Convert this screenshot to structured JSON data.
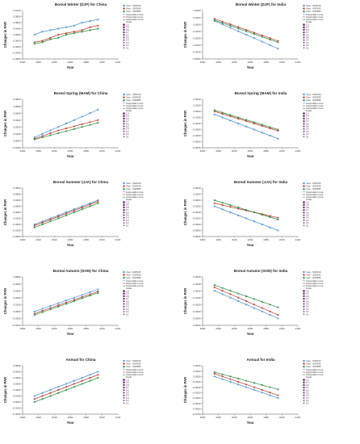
{
  "palette": {
    "ssp126": "#4a90d9",
    "ssp245": "#c0392b",
    "ssp585": "#2e8b3c",
    "size_legend": "#6a1b6a",
    "axis": "#555555"
  },
  "common": {
    "xlabel": "Year",
    "ylabel": "Changes in PAR",
    "legend_series": [
      "Year - SSP126",
      "Year - SSP245",
      "Year - SSP585"
    ],
    "legend_lines": [
      "Interpolation Line",
      "Interpolation Line",
      "Interpolation Line"
    ],
    "size_legend_title": "Scale",
    "size_legend_levels": [
      "1.0",
      "0.9",
      "0.8",
      "0.7",
      "0.6",
      "0.5",
      "0.4",
      "0.3",
      "0.2",
      "0.1"
    ],
    "x_ticks": [
      2000,
      2020,
      2040,
      2060,
      2080,
      2100,
      2120
    ]
  },
  "chart_data": [
    {
      "type": "line",
      "title": "Boreal Winter (DJF) for China",
      "xlabel": "Year",
      "ylabel": "Changes in PAR",
      "xlim": [
        2000,
        2120
      ],
      "ylim": [
        -0.06,
        0.1
      ],
      "y_ticks": [
        "-0.0600",
        "-0.0400",
        "-0.0200",
        "0.0000",
        "0.0200",
        "0.0400",
        "0.0600",
        "0.0800",
        "0.1000"
      ],
      "x": [
        2015,
        2025,
        2035,
        2045,
        2055,
        2065,
        2075,
        2085,
        2095
      ],
      "series": [
        {
          "name": "Year - SSP126",
          "values": [
            0.02,
            0.03,
            0.035,
            0.04,
            0.045,
            0.05,
            0.06,
            0.065,
            0.07
          ]
        },
        {
          "name": "Year - SSP245",
          "values": [
            -0.005,
            0.0,
            0.01,
            0.02,
            0.025,
            0.03,
            0.035,
            0.045,
            0.05
          ]
        },
        {
          "name": "Year - SSP585",
          "values": [
            -0.01,
            -0.005,
            0.005,
            0.01,
            0.02,
            0.025,
            0.03,
            0.035,
            0.04
          ]
        }
      ]
    },
    {
      "type": "line",
      "title": "Boreal Winter (DJF) for India",
      "xlabel": "Year",
      "ylabel": "Changes in PAR",
      "xlim": [
        2000,
        2120
      ],
      "ylim": [
        -0.05,
        0.02
      ],
      "y_ticks": [
        "-0.0500",
        "-0.0400",
        "-0.0300",
        "-0.0200",
        "-0.0100",
        "0.0000",
        "0.0100",
        "0.0200"
      ],
      "x": [
        2015,
        2025,
        2035,
        2045,
        2055,
        2065,
        2075,
        2085,
        2095
      ],
      "series": [
        {
          "name": "Year - SSP126",
          "values": [
            0.005,
            0.0,
            -0.005,
            -0.01,
            -0.015,
            -0.02,
            -0.025,
            -0.03,
            -0.035
          ]
        },
        {
          "name": "Year - SSP245",
          "values": [
            0.008,
            0.004,
            0.0,
            -0.004,
            -0.008,
            -0.012,
            -0.016,
            -0.02,
            -0.024
          ]
        },
        {
          "name": "Year - SSP585",
          "values": [
            0.006,
            0.002,
            -0.002,
            -0.006,
            -0.01,
            -0.014,
            -0.018,
            -0.022,
            -0.026
          ]
        }
      ]
    },
    {
      "type": "line",
      "title": "Boreal Spring (MAM) for China",
      "xlabel": "Year",
      "ylabel": "Changes in PAR",
      "xlim": [
        2000,
        2120
      ],
      "ylim": [
        -0.01,
        0.06
      ],
      "y_ticks": [
        "-0.0100",
        "0.0000",
        "0.0100",
        "0.0200",
        "0.0300",
        "0.0400",
        "0.0500",
        "0.0600"
      ],
      "x": [
        2015,
        2025,
        2035,
        2045,
        2055,
        2065,
        2075,
        2085,
        2095
      ],
      "series": [
        {
          "name": "Year - SSP126",
          "values": [
            0.005,
            0.01,
            0.015,
            0.02,
            0.025,
            0.03,
            0.035,
            0.04,
            0.045
          ]
        },
        {
          "name": "Year - SSP245",
          "values": [
            0.003,
            0.007,
            0.011,
            0.015,
            0.018,
            0.021,
            0.024,
            0.027,
            0.03
          ]
        },
        {
          "name": "Year - SSP585",
          "values": [
            0.002,
            0.005,
            0.008,
            0.011,
            0.014,
            0.017,
            0.02,
            0.023,
            0.026
          ]
        }
      ]
    },
    {
      "type": "line",
      "title": "Boreal Spring (MAM) for India",
      "xlabel": "Year",
      "ylabel": "Changes in PAR",
      "xlim": [
        2000,
        2120
      ],
      "ylim": [
        -0.06,
        0.02
      ],
      "y_ticks": [
        "-0.0600",
        "-0.0500",
        "-0.0400",
        "-0.0300",
        "-0.0200",
        "-0.0100",
        "0.0000",
        "0.0100",
        "0.0200"
      ],
      "x": [
        2015,
        2025,
        2035,
        2045,
        2055,
        2065,
        2075,
        2085,
        2095
      ],
      "series": [
        {
          "name": "Year - SSP126",
          "values": [
            -0.005,
            -0.01,
            -0.015,
            -0.02,
            -0.025,
            -0.03,
            -0.035,
            -0.04,
            -0.045
          ]
        },
        {
          "name": "Year - SSP245",
          "values": [
            0.0,
            -0.004,
            -0.008,
            -0.012,
            -0.016,
            -0.02,
            -0.024,
            -0.028,
            -0.032
          ]
        },
        {
          "name": "Year - SSP585",
          "values": [
            0.002,
            -0.002,
            -0.006,
            -0.01,
            -0.014,
            -0.018,
            -0.022,
            -0.026,
            -0.03
          ]
        }
      ]
    },
    {
      "type": "line",
      "title": "Boreal Summer (JJA) for China",
      "xlabel": "Year",
      "ylabel": "Changes in PAR",
      "xlim": [
        2000,
        2120
      ],
      "ylim": [
        -0.02,
        0.06
      ],
      "y_ticks": [
        "-0.0200",
        "-0.0100",
        "0.0000",
        "0.0100",
        "0.0200",
        "0.0300",
        "0.0400",
        "0.0500",
        "0.0600"
      ],
      "x": [
        2015,
        2025,
        2035,
        2045,
        2055,
        2065,
        2075,
        2085,
        2095
      ],
      "series": [
        {
          "name": "Year - SSP126",
          "values": [
            0.0,
            0.005,
            0.01,
            0.015,
            0.02,
            0.025,
            0.03,
            0.035,
            0.04
          ]
        },
        {
          "name": "Year - SSP245",
          "values": [
            -0.002,
            0.003,
            0.008,
            0.013,
            0.018,
            0.023,
            0.028,
            0.033,
            0.038
          ]
        },
        {
          "name": "Year - SSP585",
          "values": [
            -0.005,
            0.0,
            0.005,
            0.01,
            0.015,
            0.02,
            0.025,
            0.03,
            0.035
          ]
        }
      ]
    },
    {
      "type": "line",
      "title": "Boreal Summer (JJA) for India",
      "xlabel": "Year",
      "ylabel": "Changes in PAR",
      "xlim": [
        2000,
        2120
      ],
      "ylim": [
        -0.06,
        0.02
      ],
      "y_ticks": [
        "-0.0600",
        "-0.0500",
        "-0.0400",
        "-0.0300",
        "-0.0200",
        "-0.0100",
        "0.0000",
        "0.0100",
        "0.0200"
      ],
      "x": [
        2015,
        2025,
        2035,
        2045,
        2055,
        2065,
        2075,
        2085,
        2095
      ],
      "series": [
        {
          "name": "Year - SSP126",
          "values": [
            -0.01,
            -0.015,
            -0.02,
            -0.025,
            -0.03,
            -0.035,
            -0.04,
            -0.045,
            -0.05
          ]
        },
        {
          "name": "Year - SSP245",
          "values": [
            -0.005,
            -0.008,
            -0.011,
            -0.014,
            -0.017,
            -0.02,
            -0.023,
            -0.026,
            -0.029
          ]
        },
        {
          "name": "Year - SSP585",
          "values": [
            0.0,
            -0.004,
            -0.008,
            -0.012,
            -0.016,
            -0.02,
            -0.024,
            -0.028,
            -0.032
          ]
        }
      ]
    },
    {
      "type": "line",
      "title": "Boreal Autumn (SON) for China",
      "xlabel": "Year",
      "ylabel": "Changes in PAR",
      "xlim": [
        2000,
        2120
      ],
      "ylim": [
        -0.02,
        0.05
      ],
      "y_ticks": [
        "-0.0200",
        "-0.0100",
        "0.0000",
        "0.0100",
        "0.0200",
        "0.0300",
        "0.0400",
        "0.0500"
      ],
      "x": [
        2015,
        2025,
        2035,
        2045,
        2055,
        2065,
        2075,
        2085,
        2095
      ],
      "series": [
        {
          "name": "Year - SSP126",
          "values": [
            0.0,
            0.004,
            0.008,
            0.012,
            0.016,
            0.02,
            0.024,
            0.028,
            0.032
          ]
        },
        {
          "name": "Year - SSP245",
          "values": [
            -0.003,
            0.001,
            0.005,
            0.009,
            0.013,
            0.017,
            0.021,
            0.025,
            0.029
          ]
        },
        {
          "name": "Year - SSP585",
          "values": [
            -0.005,
            -0.001,
            0.003,
            0.007,
            0.011,
            0.015,
            0.019,
            0.023,
            0.027
          ]
        }
      ]
    },
    {
      "type": "line",
      "title": "Boreal Autumn (SON) for India",
      "xlabel": "Year",
      "ylabel": "Changes in PAR",
      "xlim": [
        2000,
        2120
      ],
      "ylim": [
        -0.05,
        0.02
      ],
      "y_ticks": [
        "-0.0500",
        "-0.0400",
        "-0.0300",
        "-0.0200",
        "-0.0100",
        "0.0000",
        "0.0100",
        "0.0200"
      ],
      "x": [
        2015,
        2025,
        2035,
        2045,
        2055,
        2065,
        2075,
        2085,
        2095
      ],
      "series": [
        {
          "name": "Year - SSP126",
          "values": [
            0.0,
            -0.005,
            -0.01,
            -0.015,
            -0.02,
            -0.025,
            -0.03,
            -0.035,
            -0.04
          ]
        },
        {
          "name": "Year - SSP245",
          "values": [
            0.005,
            0.0,
            -0.005,
            -0.01,
            -0.015,
            -0.02,
            -0.025,
            -0.03,
            -0.035
          ]
        },
        {
          "name": "Year - SSP585",
          "values": [
            0.008,
            0.004,
            0.0,
            -0.004,
            -0.008,
            -0.012,
            -0.016,
            -0.02,
            -0.024
          ]
        }
      ]
    },
    {
      "type": "line",
      "title": "Annual for China",
      "xlabel": "Year",
      "ylabel": "Changes in PAR",
      "xlim": [
        2000,
        2120
      ],
      "ylim": [
        -0.02,
        0.06
      ],
      "y_ticks": [
        "-0.0200",
        "-0.0100",
        "0.0000",
        "0.0100",
        "0.0200",
        "0.0300",
        "0.0400",
        "0.0500",
        "0.0600"
      ],
      "x": [
        2015,
        2025,
        2035,
        2045,
        2055,
        2065,
        2075,
        2085,
        2095
      ],
      "series": [
        {
          "name": "Year - SSP126",
          "values": [
            0.01,
            0.015,
            0.02,
            0.025,
            0.03,
            0.035,
            0.04,
            0.045,
            0.05
          ]
        },
        {
          "name": "Year - SSP245",
          "values": [
            0.005,
            0.01,
            0.015,
            0.02,
            0.025,
            0.03,
            0.035,
            0.04,
            0.045
          ]
        },
        {
          "name": "Year - SSP585",
          "values": [
            0.0,
            0.005,
            0.01,
            0.015,
            0.02,
            0.025,
            0.03,
            0.035,
            0.04
          ]
        }
      ]
    },
    {
      "type": "line",
      "title": "Annual for India",
      "xlabel": "Year",
      "ylabel": "Changes in PAR",
      "xlim": [
        2000,
        2120
      ],
      "ylim": [
        -0.07,
        0.02
      ],
      "y_ticks": [
        "-0.0700",
        "-0.0600",
        "-0.0500",
        "-0.0400",
        "-0.0300",
        "-0.0200",
        "-0.0100",
        "0.0000",
        "0.0100",
        "0.0200"
      ],
      "x": [
        2015,
        2025,
        2035,
        2045,
        2055,
        2065,
        2075,
        2085,
        2095
      ],
      "series": [
        {
          "name": "Year - SSP126",
          "values": [
            0.0,
            -0.005,
            -0.01,
            -0.015,
            -0.02,
            -0.025,
            -0.03,
            -0.035,
            -0.04
          ]
        },
        {
          "name": "Year - SSP245",
          "values": [
            0.005,
            0.0,
            -0.005,
            -0.01,
            -0.015,
            -0.02,
            -0.025,
            -0.03,
            -0.035
          ]
        },
        {
          "name": "Year - SSP585",
          "values": [
            0.008,
            0.004,
            0.0,
            -0.004,
            -0.008,
            -0.012,
            -0.016,
            -0.02,
            -0.024
          ]
        }
      ]
    }
  ]
}
